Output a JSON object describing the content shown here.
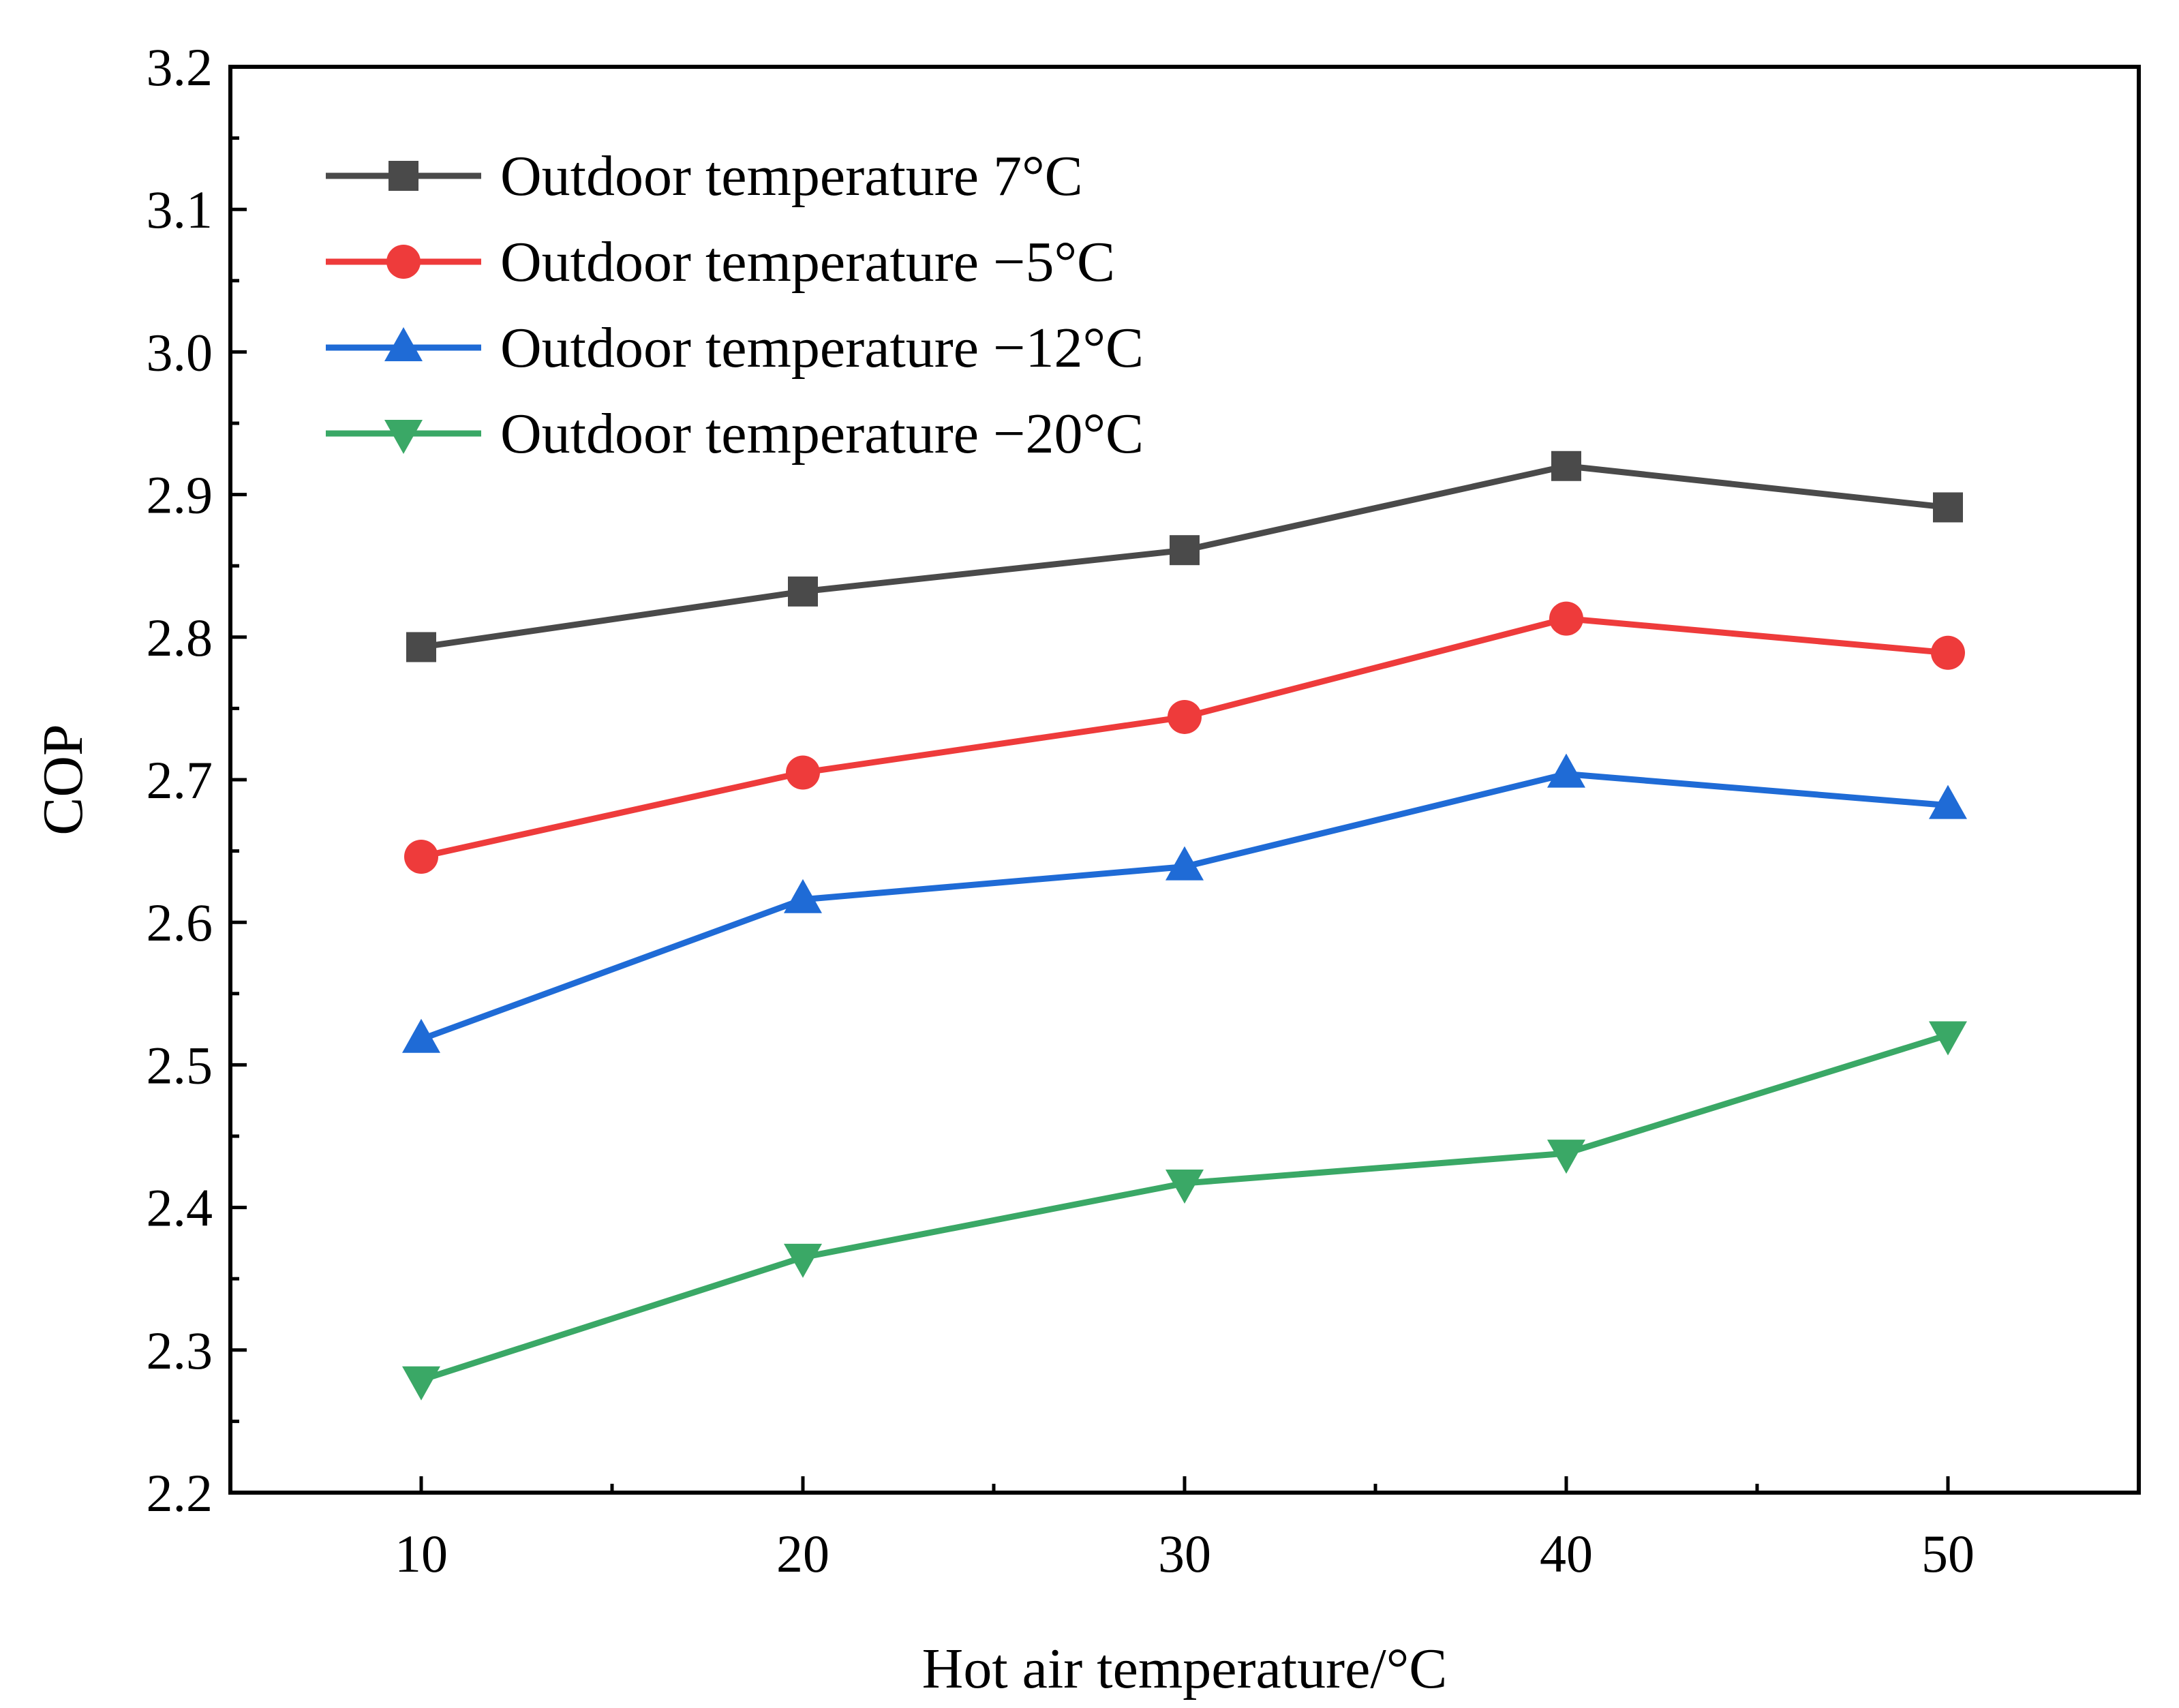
{
  "chart_data": {
    "type": "line",
    "title": "",
    "xlabel": "Hot air temperature/°C",
    "ylabel": "COP",
    "xlim": [
      5,
      55
    ],
    "ylim": [
      2.2,
      3.2
    ],
    "xticks": [
      10,
      20,
      30,
      40,
      50
    ],
    "xtick_labels": [
      "10",
      "20",
      "30",
      "40",
      "50"
    ],
    "yticks": [
      2.2,
      2.3,
      2.4,
      2.5,
      2.6,
      2.7,
      2.8,
      2.9,
      3.0,
      3.1,
      3.2
    ],
    "ytick_labels": [
      "2.2",
      "2.3",
      "2.4",
      "2.5",
      "2.6",
      "2.7",
      "2.8",
      "2.9",
      "3.0",
      "3.1",
      "3.2"
    ],
    "x": [
      10,
      20,
      30,
      40,
      50
    ],
    "grid": false,
    "legend_position": "top-left",
    "series": [
      {
        "name": "Outdoor temperature 7°C",
        "color": "#4a4a4a",
        "marker": "square",
        "values": [
          2.793,
          2.832,
          2.861,
          2.92,
          2.891
        ]
      },
      {
        "name": "Outdoor temperature −5°C",
        "color": "#ee3b3b",
        "marker": "circle",
        "values": [
          2.646,
          2.705,
          2.744,
          2.813,
          2.789
        ]
      },
      {
        "name": "Outdoor temperature −12°C",
        "color": "#1f6bd6",
        "marker": "triangle-up",
        "values": [
          2.518,
          2.616,
          2.639,
          2.704,
          2.682
        ]
      },
      {
        "name": "Outdoor temperature −20°C",
        "color": "#3aa866",
        "marker": "triangle-down",
        "values": [
          2.279,
          2.365,
          2.417,
          2.438,
          2.521
        ]
      }
    ]
  }
}
